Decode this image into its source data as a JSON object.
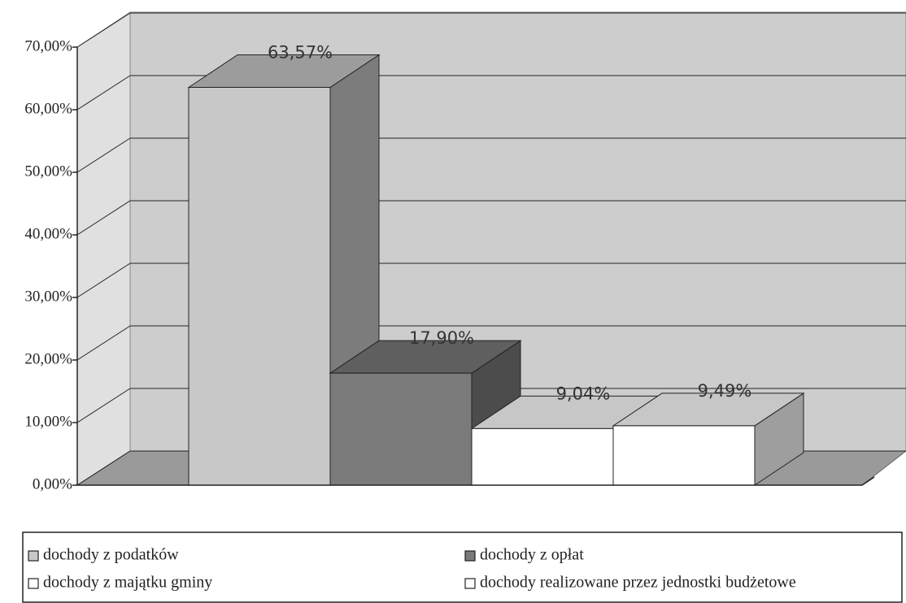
{
  "chart_data": {
    "type": "bar3d",
    "categories": [
      null
    ],
    "series": [
      {
        "name": "dochody z podatków",
        "color": "#c8c8c8",
        "values": [
          63.57
        ],
        "value_labels": [
          "63,57%"
        ]
      },
      {
        "name": "dochody z opłat",
        "color": "#7a7a7a",
        "values": [
          17.9
        ],
        "value_labels": [
          "17,90%"
        ]
      },
      {
        "name": "dochody z majątku gminy",
        "color": "#ffffff",
        "values": [
          9.04
        ],
        "value_labels": [
          "9,04%"
        ]
      },
      {
        "name": "dochody realizowane przez jednostki budżetowe",
        "color": "#ffffff",
        "values": [
          9.49
        ],
        "value_labels": [
          "9,49%"
        ]
      }
    ],
    "ylim": [
      0,
      70
    ],
    "yticks": [
      {
        "value": 0,
        "label": "0,00%"
      },
      {
        "value": 10,
        "label": "10,00%"
      },
      {
        "value": 20,
        "label": "20,00%"
      },
      {
        "value": 30,
        "label": "30,00%"
      },
      {
        "value": 40,
        "label": "40,00%"
      },
      {
        "value": 50,
        "label": "50,00%"
      },
      {
        "value": 60,
        "label": "60,00%"
      },
      {
        "value": 70,
        "label": "70,00%"
      }
    ],
    "grid": true,
    "legend": "bottom"
  }
}
